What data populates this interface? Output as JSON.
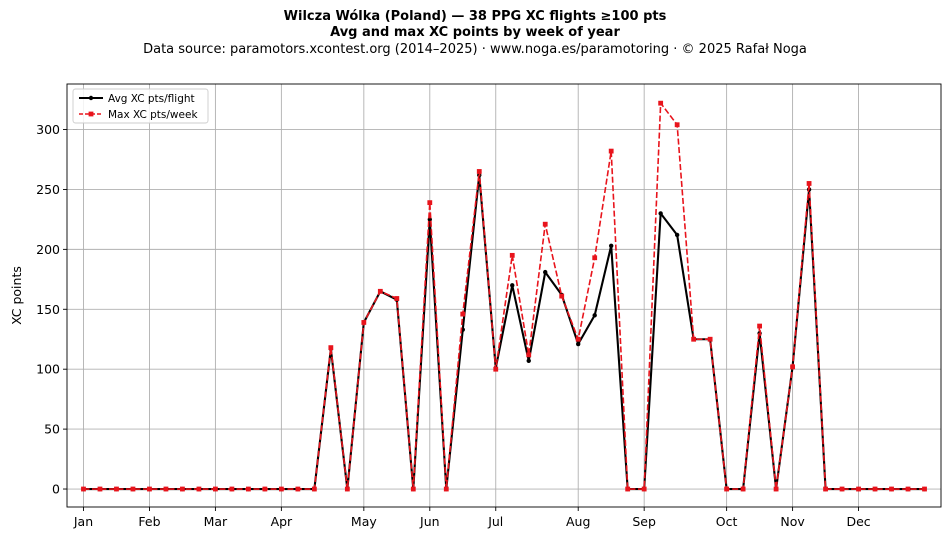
{
  "header": {
    "title_line1": "Wilcza Wólka (Poland)  —  38 PPG XC flights ≥100 pts",
    "title_line2": "Avg and max XC points by week of year",
    "subtitle": "Data source: paramotors.xcontest.org (2014–2025)  ·  www.noga.es/paramotoring  ·  © 2025 Rafał Noga"
  },
  "chart_data": {
    "type": "line",
    "ylabel": "XC points",
    "xlabel": "",
    "x_unit": "week of year",
    "xlim": [
      0,
      53
    ],
    "ylim": [
      -15,
      338
    ],
    "grid": true,
    "legend_position": "top-left",
    "month_ticks": [
      {
        "label": "Jan",
        "week": 1
      },
      {
        "label": "Feb",
        "week": 5
      },
      {
        "label": "Mar",
        "week": 9
      },
      {
        "label": "Apr",
        "week": 13
      },
      {
        "label": "May",
        "week": 18
      },
      {
        "label": "Jun",
        "week": 22
      },
      {
        "label": "Jul",
        "week": 26
      },
      {
        "label": "Aug",
        "week": 31
      },
      {
        "label": "Sep",
        "week": 35
      },
      {
        "label": "Oct",
        "week": 40
      },
      {
        "label": "Nov",
        "week": 44
      },
      {
        "label": "Dec",
        "week": 48
      }
    ],
    "y_ticks": [
      0,
      50,
      100,
      150,
      200,
      250,
      300
    ],
    "x": [
      1,
      2,
      3,
      4,
      5,
      6,
      7,
      8,
      9,
      10,
      11,
      12,
      13,
      14,
      15,
      16,
      17,
      18,
      19,
      20,
      21,
      22,
      23,
      24,
      25,
      26,
      27,
      28,
      29,
      30,
      31,
      32,
      33,
      34,
      35,
      36,
      37,
      38,
      39,
      40,
      41,
      42,
      43,
      44,
      45,
      46,
      47,
      48,
      49,
      50,
      51,
      52
    ],
    "series": [
      {
        "name": "Avg XC pts/flight",
        "color": "#000000",
        "linestyle": "solid",
        "marker": "circle",
        "values": [
          0,
          0,
          0,
          0,
          0,
          0,
          0,
          0,
          0,
          0,
          0,
          0,
          0,
          0,
          0,
          117,
          0,
          139,
          165,
          158,
          0,
          225,
          0,
          133,
          262,
          101,
          170,
          107,
          181,
          162,
          121,
          145,
          203,
          0,
          0,
          230,
          212,
          125,
          125,
          0,
          0,
          130,
          0,
          102,
          250,
          0,
          0,
          0,
          0,
          0,
          0,
          0
        ]
      },
      {
        "name": "Max XC pts/week",
        "color": "#e8141c",
        "linestyle": "dashed",
        "marker": "square",
        "values": [
          0,
          0,
          0,
          0,
          0,
          0,
          0,
          0,
          0,
          0,
          0,
          0,
          0,
          0,
          0,
          118,
          0,
          139,
          165,
          159,
          0,
          239,
          0,
          146,
          265,
          100,
          195,
          112,
          221,
          161,
          125,
          193,
          282,
          0,
          0,
          322,
          304,
          125,
          125,
          0,
          0,
          136,
          0,
          102,
          255,
          0,
          0,
          0,
          0,
          0,
          0,
          0
        ]
      }
    ]
  }
}
